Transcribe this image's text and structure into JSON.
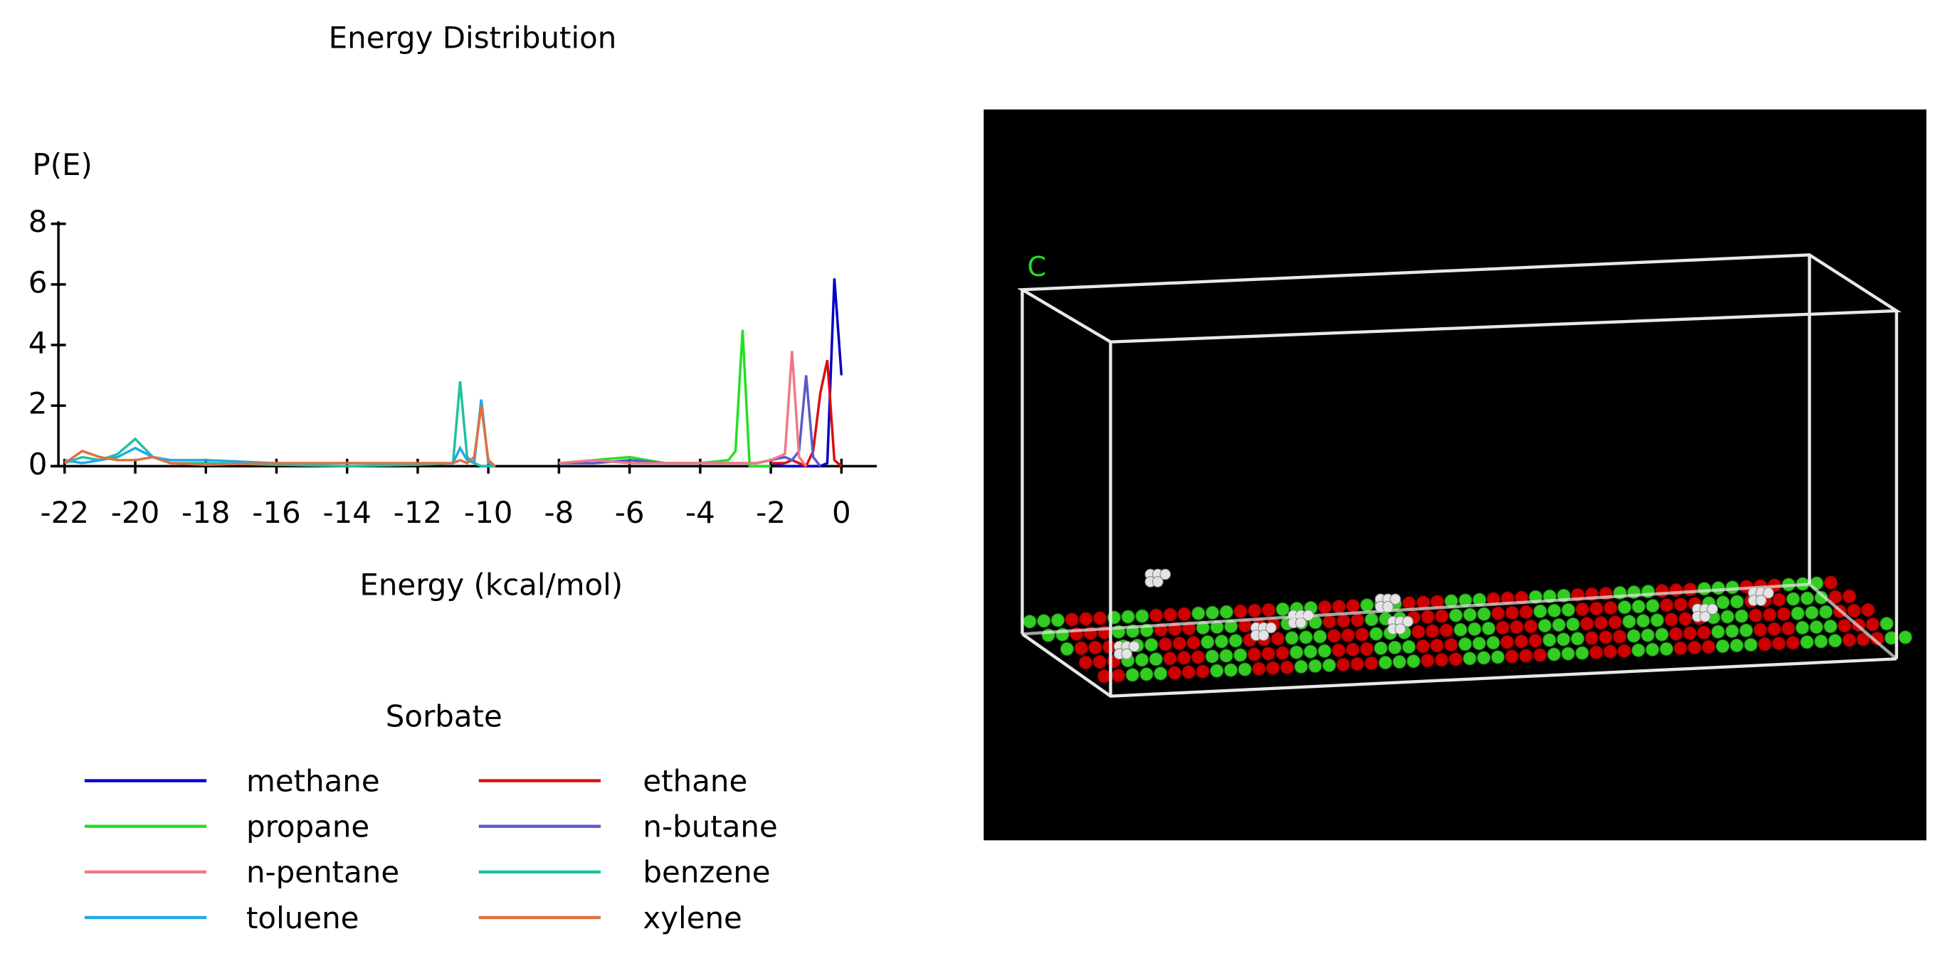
{
  "chart_data": {
    "type": "line",
    "title": "Energy Distribution",
    "y_label": "P(E)",
    "x_label": "Energy (kcal/mol)",
    "legend_title": "Sorbate",
    "x": [
      -22,
      -21.5,
      -21,
      -20.5,
      -20,
      -19.5,
      -19,
      -18,
      -16,
      -14,
      -12,
      -11,
      -10.8,
      -10.6,
      -10.4,
      -10.2,
      -10,
      -9.8,
      -8,
      -7,
      -6,
      -5,
      -4,
      -3.2,
      -3,
      -2.8,
      -2.6,
      -2.4,
      -2,
      -1.6,
      -1.4,
      -1.2,
      -1.0,
      -0.8,
      -0.6,
      -0.4,
      -0.2,
      0
    ],
    "series": [
      {
        "name": "methane",
        "color": "#0000c8",
        "values": [
          null,
          null,
          null,
          null,
          null,
          null,
          null,
          null,
          null,
          null,
          null,
          null,
          null,
          null,
          null,
          null,
          null,
          null,
          null,
          null,
          null,
          null,
          null,
          null,
          null,
          null,
          null,
          null,
          0.1,
          0,
          0,
          0,
          0,
          0,
          0,
          0.1,
          6.2,
          3.0
        ]
      },
      {
        "name": "ethane",
        "color": "#d81010",
        "values": [
          null,
          null,
          null,
          null,
          null,
          null,
          null,
          null,
          null,
          null,
          null,
          null,
          null,
          null,
          null,
          null,
          null,
          null,
          null,
          null,
          null,
          null,
          null,
          null,
          null,
          null,
          null,
          null,
          0.1,
          0.1,
          0.2,
          0.1,
          0,
          0.5,
          2.4,
          3.5,
          0.2,
          0
        ]
      },
      {
        "name": "propane",
        "color": "#22e022",
        "values": [
          null,
          null,
          null,
          null,
          null,
          null,
          null,
          null,
          null,
          null,
          null,
          null,
          null,
          null,
          null,
          null,
          null,
          null,
          0.1,
          0.2,
          0.3,
          0.1,
          0.1,
          0.2,
          0.5,
          4.5,
          0,
          0,
          0,
          null,
          null,
          null,
          null,
          null,
          null,
          null,
          null,
          null
        ]
      },
      {
        "name": "n-butane",
        "color": "#5a5ac8",
        "values": [
          null,
          null,
          null,
          null,
          null,
          null,
          null,
          null,
          null,
          null,
          null,
          null,
          null,
          null,
          null,
          null,
          null,
          null,
          0.1,
          0.1,
          0.2,
          0.1,
          0.1,
          0.1,
          0.1,
          0.1,
          0.1,
          0.1,
          0.2,
          0.3,
          0.2,
          0.5,
          3.0,
          0.3,
          0,
          null,
          null,
          null
        ]
      },
      {
        "name": "n-pentane",
        "color": "#f07888",
        "values": [
          null,
          null,
          null,
          null,
          null,
          null,
          null,
          null,
          null,
          null,
          null,
          null,
          null,
          null,
          null,
          null,
          null,
          null,
          0.1,
          0.2,
          0.1,
          0.1,
          0.1,
          0.1,
          0.1,
          0.1,
          0.1,
          0.1,
          0.2,
          0.4,
          3.8,
          0.3,
          0,
          null,
          null,
          null,
          null,
          null
        ]
      },
      {
        "name": "benzene",
        "color": "#22c0a0",
        "values": [
          0.1,
          0.3,
          0.2,
          0.4,
          0.9,
          0.3,
          0.1,
          0.1,
          0.05,
          0,
          0.05,
          0.1,
          2.8,
          0.3,
          0.1,
          0,
          0,
          0,
          null,
          null,
          null,
          null,
          null,
          null,
          null,
          null,
          null,
          null,
          null,
          null,
          null,
          null,
          null,
          null,
          null,
          null,
          null,
          null
        ]
      },
      {
        "name": "toluene",
        "color": "#22a8e8",
        "values": [
          0.2,
          0.1,
          0.2,
          0.3,
          0.6,
          0.3,
          0.2,
          0.2,
          0.1,
          0.1,
          0.1,
          0.1,
          0.6,
          0.2,
          0.1,
          2.2,
          0.1,
          0,
          null,
          null,
          null,
          null,
          null,
          null,
          null,
          null,
          null,
          null,
          null,
          null,
          null,
          null,
          null,
          null,
          null,
          null,
          null,
          null
        ]
      },
      {
        "name": "xylene",
        "color": "#e07040",
        "values": [
          0.1,
          0.5,
          0.3,
          0.2,
          0.2,
          0.3,
          0.1,
          0.05,
          0.1,
          0.1,
          0.1,
          0.1,
          0.2,
          0.1,
          0.3,
          2.0,
          0.2,
          0,
          null,
          null,
          null,
          null,
          null,
          null,
          null,
          null,
          null,
          null,
          null,
          null,
          null,
          null,
          null,
          null,
          null,
          null,
          null,
          null
        ]
      }
    ],
    "xlim": [
      -22.4,
      1
    ],
    "ylim": [
      0,
      8
    ],
    "xticks": [
      -22,
      -20,
      -18,
      -16,
      -14,
      -12,
      -10,
      -8,
      -6,
      -4,
      -2,
      0
    ],
    "yticks": [
      0,
      2,
      4,
      6,
      8
    ],
    "grid": false
  },
  "viewer": {
    "axis_label": "C"
  }
}
